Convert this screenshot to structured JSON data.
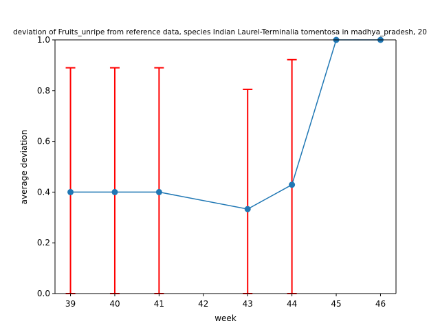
{
  "chart_data": {
    "type": "line",
    "title": "deviation of Fruits_unripe from reference data, species Indian Laurel-Terminalia tomentosa in madhya_pradesh, 20",
    "xlabel": "week",
    "ylabel": "average deviation",
    "xlim": [
      38.65,
      46.35
    ],
    "ylim": [
      0,
      1.0
    ],
    "x_ticks": [
      39,
      40,
      41,
      42,
      43,
      44,
      45,
      46
    ],
    "y_ticks": [
      0.0,
      0.2,
      0.4,
      0.6,
      0.8,
      1.0
    ],
    "x_tick_labels": [
      "39",
      "40",
      "41",
      "42",
      "43",
      "44",
      "45",
      "46"
    ],
    "y_tick_labels": [
      "0.0",
      "0.2",
      "0.4",
      "0.6",
      "0.8",
      "1.0"
    ],
    "grid": false,
    "series": [
      {
        "x": [
          39,
          40,
          41,
          43,
          44,
          45,
          46
        ],
        "y": [
          0.4,
          0.4,
          0.4,
          0.333,
          0.429,
          1.0,
          1.0
        ],
        "error_upper": [
          0.89,
          0.89,
          0.89,
          0.805,
          0.922,
          null,
          null
        ],
        "error_lower": [
          0.0,
          0.0,
          0.0,
          0.0,
          0.0,
          null,
          null
        ],
        "line_color": "#1f77b4",
        "error_color": "#ff0000"
      }
    ]
  }
}
